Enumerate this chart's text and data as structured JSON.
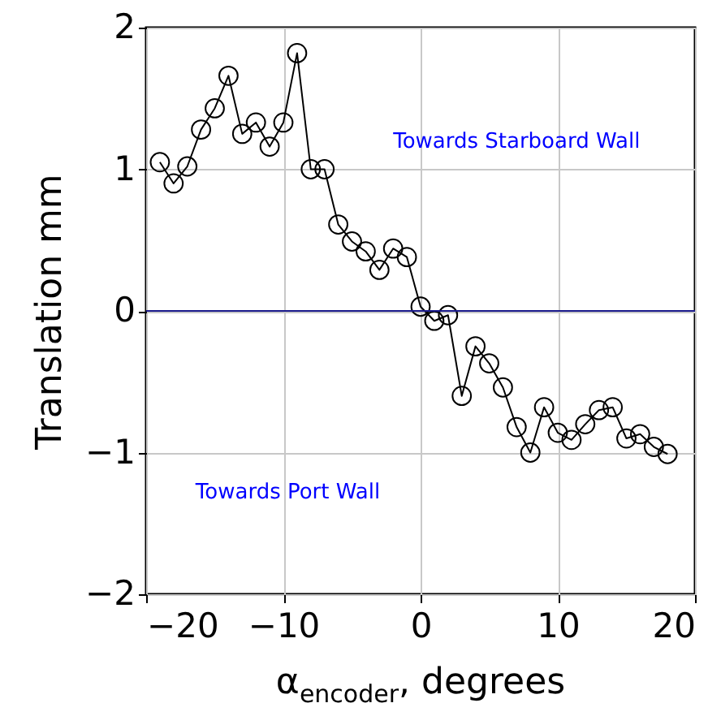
{
  "chart_data": {
    "type": "line",
    "xlabel": "α$_{encoder}$, degrees",
    "ylabel": "Translation mm",
    "x": [
      -19,
      -18,
      -17,
      -16,
      -15,
      -14,
      -13,
      -12,
      -11,
      -10,
      -9,
      -8,
      -7,
      -6,
      -5,
      -4,
      -3,
      -2,
      -1,
      0,
      1,
      2,
      3,
      4,
      5,
      6,
      7,
      8,
      9,
      10,
      11,
      12,
      13,
      14,
      15,
      16,
      17,
      18
    ],
    "series": [
      {
        "color": "#000000",
        "values": [
          1.05,
          0.9,
          1.02,
          1.28,
          1.43,
          1.66,
          1.25,
          1.33,
          1.16,
          1.33,
          1.82,
          1.0,
          1.0,
          0.61,
          0.49,
          0.42,
          0.29,
          0.44,
          0.38,
          0.03,
          -0.07,
          -0.03,
          -0.6,
          -0.25,
          -0.37,
          -0.54,
          -0.82,
          -1.0,
          -0.68,
          -0.86,
          -0.91,
          -0.8,
          -0.7,
          -0.68,
          -0.9,
          -0.87,
          -0.96,
          -1.01
        ]
      }
    ],
    "xlim": [
      -20,
      20
    ],
    "xticks": [
      -20,
      -10,
      0,
      10,
      20
    ],
    "ylim": [
      -2,
      2
    ],
    "yticks": [
      -2,
      -1,
      0,
      1,
      2
    ],
    "grid": true,
    "marker": "circle",
    "line_style": "solid",
    "ref_lines": [
      {
        "axis": "y",
        "value": 0,
        "color": "#1a1a8c"
      }
    ],
    "annotations": [
      "Towards Starboard Wall",
      "Towards Port Wall"
    ]
  }
}
